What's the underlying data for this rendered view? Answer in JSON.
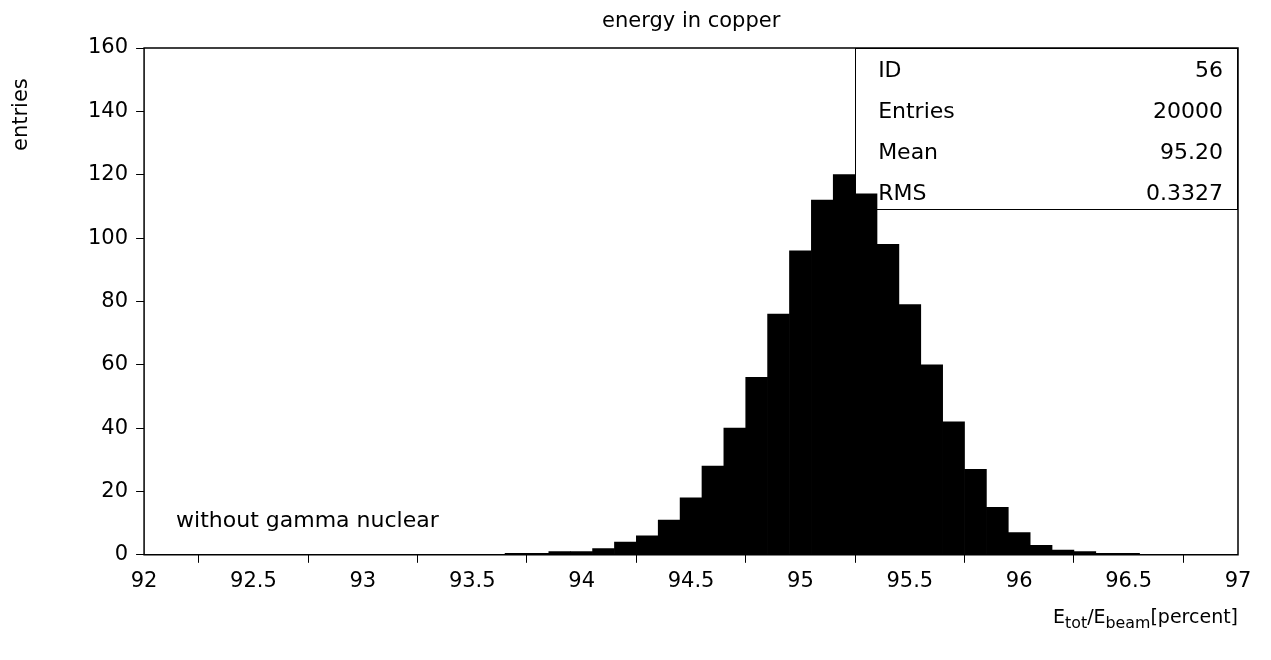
{
  "chart_data": {
    "type": "histogram",
    "title": "energy in copper",
    "xlabel": "E$_{tot}$/E$_{beam}$[percent]",
    "ylabel": "entries",
    "bins": [
      93.65,
      93.75,
      93.85,
      93.95,
      94.05,
      94.15,
      94.25,
      94.35,
      94.45,
      94.55,
      94.65,
      94.75,
      94.85,
      94.95,
      95.05,
      95.15,
      95.25,
      95.35,
      95.45,
      95.55,
      95.65,
      95.75,
      95.85,
      95.95,
      96.05,
      96.15,
      96.25,
      96.35,
      96.45,
      96.55
    ],
    "values": [
      0.5,
      0.5,
      1,
      1,
      2,
      4,
      6,
      11,
      18,
      28,
      40,
      56,
      76,
      96,
      112,
      120,
      114,
      98,
      79,
      60,
      42,
      27,
      15,
      7,
      3,
      1.5,
      1,
      0.5,
      0.5
    ],
    "color": "#000000",
    "xlim": [
      92,
      97
    ],
    "xticks": [
      92,
      92.5,
      93,
      93.5,
      94,
      94.5,
      95,
      95.5,
      96,
      96.5,
      97
    ],
    "ylim": [
      0,
      160
    ],
    "yticks": [
      0,
      20,
      40,
      60,
      80,
      100,
      120,
      140,
      160
    ],
    "grid": false,
    "legend": false,
    "annotations": [
      "without gamma nuclear",
      "ID",
      "56",
      "Entries",
      "20000",
      "Mean",
      "95.20",
      "RMS",
      "0.3327"
    ]
  }
}
